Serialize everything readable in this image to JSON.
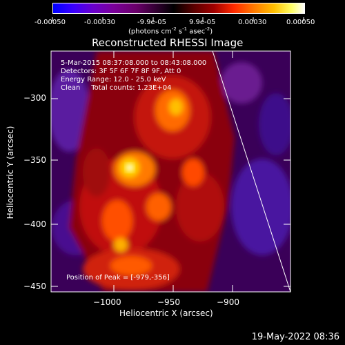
{
  "colorbar": {
    "ticks": [
      "-0.00050",
      "-0.00030",
      "-9.9e-05",
      "9.9e-05",
      "0.00030",
      "0.00050"
    ],
    "units_prefix": "(photons cm",
    "units_exp1": "-2",
    "units_mid": " s",
    "units_exp2": "-1",
    "units_mid2": " asec",
    "units_exp3": "-2",
    "units_suffix": ")"
  },
  "chart_data": {
    "type": "heatmap",
    "title": "Reconstructed RHESSI Image",
    "xlabel": "Heliocentric X (arcsec)",
    "ylabel": "Heliocentric Y (arcsec)",
    "xlim": [
      -1045,
      -886
    ],
    "ylim": [
      -454,
      -288
    ],
    "x_ticks": [
      -1000,
      -950,
      -900
    ],
    "y_ticks": [
      -300,
      -350,
      -400,
      -450
    ],
    "x_tick_labels": [
      "−1000",
      "−950",
      "−900"
    ],
    "y_tick_labels": [
      "−300",
      "−350",
      "−400",
      "−450"
    ],
    "colorbar_range": [
      -0.0005,
      0.0005
    ],
    "peak": [
      -979,
      -356
    ],
    "limb_line": {
      "from": [
        -937,
        -288
      ],
      "to": [
        -887,
        -454
      ]
    }
  },
  "info": {
    "line1": "5-Mar-2015 08:37:08.000 to 08:43:08.000",
    "line2": "Detectors: 3F 5F 6F 7F 8F 9F, Att 0",
    "line3": "Energy Range: 12.0 - 25.0 keV",
    "line4": "Clean     Total counts: 1.23E+04",
    "peak_text": "Position of Peak = [-979,-356]"
  },
  "footer": {
    "timestamp": "19-May-2022 08:36"
  }
}
